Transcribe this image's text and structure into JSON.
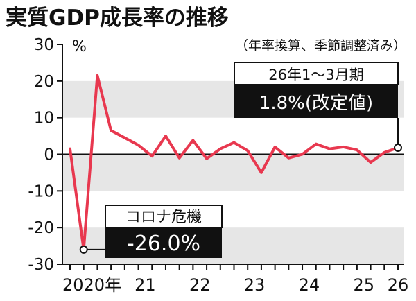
{
  "colors": {
    "line": "#e8384f",
    "band": "#e6e6e6",
    "text": "#111111",
    "box_dark": "#111111",
    "box_text_light": "#ffffff"
  },
  "chart_data": {
    "type": "line",
    "title": "実質GDP成長率の推移",
    "subtitle": "（年率換算、季節調整済み）",
    "ylabel": "%",
    "ylim": [
      -30,
      30
    ],
    "yticks": [
      30,
      20,
      10,
      0,
      -10,
      -20,
      -30
    ],
    "x_tick_labels": [
      "2020年",
      "21",
      "22",
      "23",
      "24",
      "25",
      "26"
    ],
    "x": [
      "2020Q1",
      "2020Q2",
      "2020Q3",
      "2020Q4",
      "2021Q1",
      "2021Q2",
      "2021Q3",
      "2021Q4",
      "2022Q1",
      "2022Q2",
      "2022Q3",
      "2022Q4",
      "2023Q1",
      "2023Q2",
      "2023Q3",
      "2023Q4",
      "2024Q1",
      "2024Q2",
      "2024Q3",
      "2024Q4",
      "2025Q1",
      "2025Q2",
      "2025Q3",
      "2025Q4",
      "2026Q1"
    ],
    "series": [
      {
        "values": [
          1.5,
          -26.0,
          21.5,
          6.5,
          4.5,
          2.5,
          -0.5,
          5.0,
          -1.0,
          3.8,
          -1.2,
          1.5,
          3.2,
          1.0,
          -5.0,
          2.0,
          -1.0,
          0.0,
          2.8,
          1.5,
          2.0,
          1.2,
          -2.2,
          0.5,
          1.8
        ]
      }
    ],
    "annotations": [
      {
        "id": "covid",
        "label": "コロナ危機",
        "value_text": "-26.0%",
        "point_index": 1
      },
      {
        "id": "latest",
        "label": "26年1～3月期",
        "value_text": "1.8%(改定値)",
        "point_index": 24
      }
    ],
    "grid": "alternating horizontal bands",
    "legend": "none"
  }
}
